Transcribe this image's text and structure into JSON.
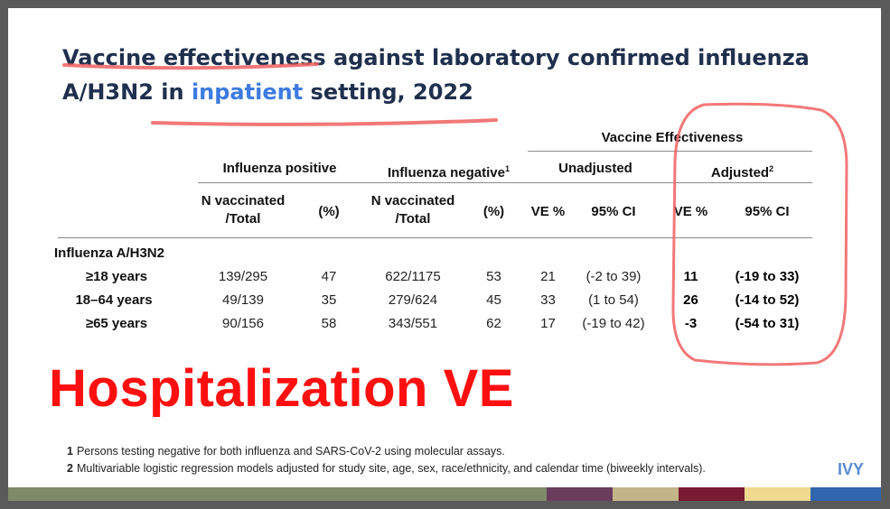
{
  "title": {
    "word1": "Vaccine effectiveness",
    "part2": " against laboratory confirmed influenza A/H3N2 in ",
    "highlight": "inpatient",
    "part3": " setting,  2022"
  },
  "table": {
    "ve_group": "Vaccine Effectiveness",
    "col_groups": {
      "flu_pos": "Influenza positive",
      "flu_neg": "Influenza negative",
      "flu_neg_sup": "1",
      "unadj": "Unadjusted",
      "adj": "Adjusted",
      "adj_sup": "2"
    },
    "sub_headers": {
      "n_vacc_line1": "N vaccinated",
      "n_vacc_line2": "/Total",
      "pct": "(%)",
      "ve_pct": "VE %",
      "ci": "95% CI"
    },
    "section_label": "Influenza A/H3N2",
    "rows": [
      {
        "label": "≥18 years",
        "pos_n": "139/295",
        "pos_pct": "47",
        "neg_n": "622/1175",
        "neg_pct": "53",
        "u_ve": "21",
        "u_ci": "(-2 to 39)",
        "a_ve": "11",
        "a_ci": "(-19 to 33)"
      },
      {
        "label": "18–64 years",
        "pos_n": "49/139",
        "pos_pct": "35",
        "neg_n": "279/624",
        "neg_pct": "45",
        "u_ve": "33",
        "u_ci": "(1 to 54)",
        "a_ve": "26",
        "a_ci": "(-14 to 52)"
      },
      {
        "label": "≥65 years",
        "pos_n": "90/156",
        "pos_pct": "58",
        "neg_n": "343/551",
        "neg_pct": "62",
        "u_ve": "17",
        "u_ci": "(-19 to 42)",
        "a_ve": "-3",
        "a_ci": "(-54 to 31)"
      }
    ]
  },
  "overlay_text": "Hospitalization VE",
  "footnotes": [
    {
      "mark": "1",
      "text": "Persons testing negative for both influenza and SARS-CoV-2 using molecular assays."
    },
    {
      "mark": "2",
      "text": "Multivariable logistic regression models adjusted for study site, age, sex, race/ethnicity, and calendar time (biweekly intervals)."
    }
  ],
  "brand": "IVY",
  "colors": {
    "title": "#1f2f4d",
    "highlight": "#3d7be0",
    "overlay": "#ff0f0f",
    "annotation": "#f06060",
    "bar_segments": [
      "#7f8a6a",
      "#6a3d5c",
      "#c4b48a",
      "#7a1a32",
      "#efd98f",
      "#2f66ad"
    ]
  }
}
